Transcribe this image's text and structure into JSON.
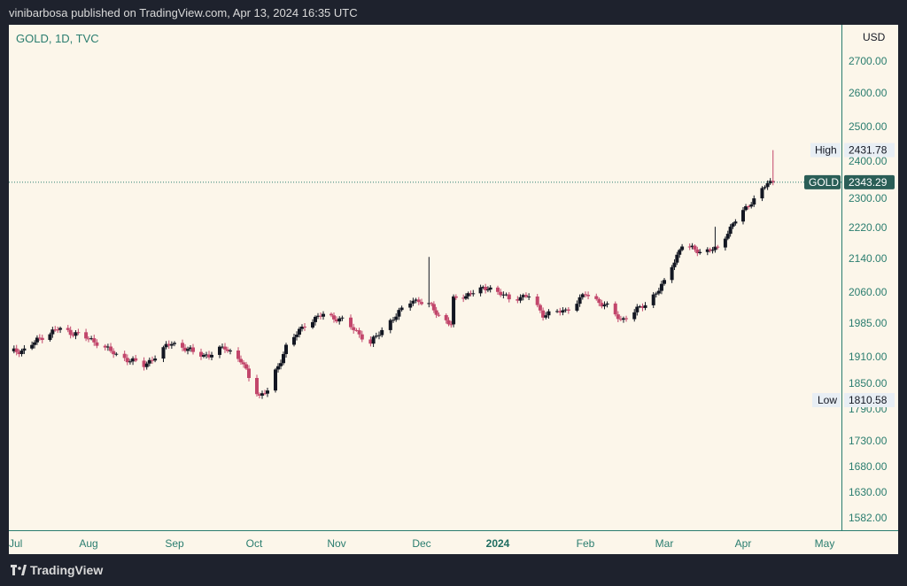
{
  "header": {
    "publish_info": "vinibarbosa published on TradingView.com, Apr 13, 2024 16:35 UTC"
  },
  "footer": {
    "brand": "TradingView"
  },
  "chart_data": {
    "type": "candlestick",
    "symbol_label": "GOLD, 1D, TVC",
    "currency": "USD",
    "y_ticks": [
      2700,
      2600,
      2500,
      2400,
      2300,
      2220,
      2140,
      2060,
      1985,
      1910,
      1850,
      1790,
      1730,
      1680,
      1630,
      1582
    ],
    "y_tick_labels": [
      "2700.00",
      "2600.00",
      "2500.00",
      "2400.00",
      "2300.00",
      "2220.00",
      "2140.00",
      "2060.00",
      "1985.00",
      "1910.00",
      "1850.00",
      "1790.00",
      "1730.00",
      "1680.00",
      "1630.00",
      "1582.00"
    ],
    "x_labels": [
      {
        "label": "Jul",
        "date": "2023-07-01"
      },
      {
        "label": "Aug",
        "date": "2023-08-01"
      },
      {
        "label": "Sep",
        "date": "2023-09-01"
      },
      {
        "label": "Oct",
        "date": "2023-10-01"
      },
      {
        "label": "Nov",
        "date": "2023-11-01"
      },
      {
        "label": "Dec",
        "date": "2023-12-01"
      },
      {
        "label": "2024",
        "date": "2024-01-01",
        "bold": true
      },
      {
        "label": "Feb",
        "date": "2024-02-01"
      },
      {
        "label": "Mar",
        "date": "2024-03-01"
      },
      {
        "label": "Apr",
        "date": "2024-04-01"
      },
      {
        "label": "May",
        "date": "2024-05-01"
      }
    ],
    "high": {
      "label": "High",
      "value": "2431.78"
    },
    "low": {
      "label": "Low",
      "value": "1810.58"
    },
    "last": {
      "label": "GOLD",
      "value": "2343.29"
    },
    "colors": {
      "up": "#131722",
      "down": "#c2466b",
      "last_line": "#2a7d6f",
      "background": "#fcf6ea"
    },
    "closes": [
      {
        "date": "2023-06-30",
        "close": 1919
      },
      {
        "date": "2023-07-07",
        "close": 1925
      },
      {
        "date": "2023-07-14",
        "close": 1955
      },
      {
        "date": "2023-07-20",
        "close": 1972
      },
      {
        "date": "2023-07-28",
        "close": 1960
      },
      {
        "date": "2023-08-04",
        "close": 1942
      },
      {
        "date": "2023-08-11",
        "close": 1914
      },
      {
        "date": "2023-08-21",
        "close": 1890
      },
      {
        "date": "2023-08-31",
        "close": 1942
      },
      {
        "date": "2023-09-08",
        "close": 1920
      },
      {
        "date": "2023-09-14",
        "close": 1912
      },
      {
        "date": "2023-09-20",
        "close": 1932
      },
      {
        "date": "2023-09-26",
        "close": 1900
      },
      {
        "date": "2023-10-03",
        "close": 1820
      },
      {
        "date": "2023-10-06",
        "close": 1832
      },
      {
        "date": "2023-10-13",
        "close": 1932
      },
      {
        "date": "2023-10-20",
        "close": 1982
      },
      {
        "date": "2023-10-27",
        "close": 2006
      },
      {
        "date": "2023-11-03",
        "close": 1992
      },
      {
        "date": "2023-11-13",
        "close": 1940
      },
      {
        "date": "2023-11-21",
        "close": 1998
      },
      {
        "date": "2023-11-28",
        "close": 2042
      },
      {
        "date": "2023-12-04",
        "close": 2030
      },
      {
        "date": "2023-12-08",
        "close": 2004
      },
      {
        "date": "2023-12-13",
        "close": 1982
      },
      {
        "date": "2023-12-14",
        "close": 2042
      },
      {
        "date": "2023-12-28",
        "close": 2072
      },
      {
        "date": "2024-01-05",
        "close": 2045
      },
      {
        "date": "2024-01-12",
        "close": 2050
      },
      {
        "date": "2024-01-17",
        "close": 2006
      },
      {
        "date": "2024-01-25",
        "close": 2015
      },
      {
        "date": "2024-02-01",
        "close": 2055
      },
      {
        "date": "2024-02-09",
        "close": 2025
      },
      {
        "date": "2024-02-14",
        "close": 1992
      },
      {
        "date": "2024-02-23",
        "close": 2030
      },
      {
        "date": "2024-03-01",
        "close": 2082
      },
      {
        "date": "2024-03-08",
        "close": 2175
      },
      {
        "date": "2024-03-15",
        "close": 2158
      },
      {
        "date": "2024-03-22",
        "close": 2165
      },
      {
        "date": "2024-03-28",
        "close": 2230
      },
      {
        "date": "2024-04-04",
        "close": 2290
      },
      {
        "date": "2024-04-10",
        "close": 2340
      },
      {
        "date": "2024-04-12",
        "close": 2343.29
      }
    ],
    "spikes": [
      {
        "date": "2023-12-04",
        "high": 2144
      },
      {
        "date": "2024-03-21",
        "high": 2222
      },
      {
        "date": "2024-04-12",
        "high": 2431.78
      }
    ]
  }
}
